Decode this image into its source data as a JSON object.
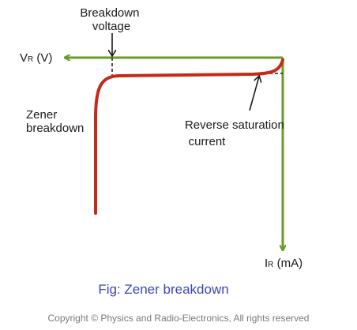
{
  "labels": {
    "breakdown_voltage_line1": "Breakdown",
    "breakdown_voltage_line2": "voltage",
    "vr_axis_main": "V",
    "vr_axis_sub": "R",
    "vr_axis_unit": " (V)",
    "zener_line1": "Zener",
    "zener_line2": "breakdown",
    "reverse_sat_line1": "Reverse saturation",
    "reverse_sat_line2": "current",
    "ir_axis_main": "I",
    "ir_axis_sub": "R",
    "ir_axis_unit": " (mA)"
  },
  "caption": "Fig: Zener breakdown",
  "copyright": "Copyright © Physics and Radio-Electronics, All rights reserved",
  "colors": {
    "axis": "#6a9a2a",
    "curve": "#c7281b",
    "arrow": "#1a1a1a",
    "caption": "#3c44b4",
    "copyright": "#7a7a7a"
  }
}
